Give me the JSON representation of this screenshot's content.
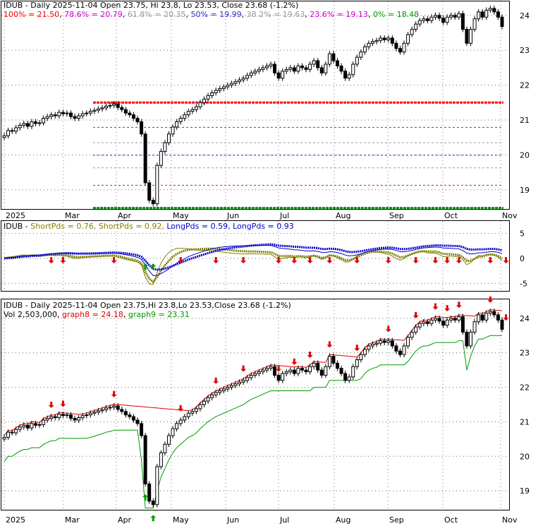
{
  "colors": {
    "up_candle": "#ffffff",
    "down_candle": "#000000",
    "fib_red": "#ff0000",
    "fib_purple": "#cc00cc",
    "fib_gray": "#999999",
    "fib_blue": "#3333cc",
    "fib_green": "#009900",
    "short_pds": "#808000",
    "long_pds": "#0000cc",
    "arrow_down": "#e00000",
    "arrow_up": "#00a000",
    "graph8": "#e00000",
    "graph9": "#009900",
    "grid": "#000000"
  },
  "x_axis": {
    "labels": [
      "2025",
      "Mar",
      "Apr",
      "May",
      "Jun",
      "Jul",
      "Aug",
      "Sep",
      "Oct",
      "Nov"
    ]
  },
  "panel1": {
    "info": {
      "fib_100": "100% = 21.50",
      "fib_786": "78.6% = 20.79",
      "fib_618": "61.8% = 20.35",
      "fib_50": "50% = 19.99",
      "fib_382": "38.2% = 19.63",
      "fib_236": "23.6% = 19.13",
      "fib_0": "0% = 18.48"
    },
    "title": "IDUB - Daily 2025-11-04 Open 23.75, Hi 23.8, Lo 23.53, Close 23.68 (-1.2%)"
  },
  "panel2": {
    "title": "IDUB - ShortPds = 0.76, ShortPds = 0.92, LongPds = 0.59, LongPds = 0.93",
    "t_idub": "IDUB - ",
    "t_sp1": "ShortPds = 0.76, ",
    "t_sp2": "ShortPds = 0.92, ",
    "t_lp1": "LongPds = 0.59, ",
    "t_lp2": "LongPds = 0.93"
  },
  "panel3": {
    "title": "IDUB - Daily 2025-11-04 Open 23.75,Hi 23.8,Lo 23.53,Close 23.68 (-1.2%)",
    "vol": "Vol 2,503,000",
    "graph8": "graph8 = 24.18",
    "graph9": "graph9 = 23.31"
  },
  "chart_data": [
    {
      "type": "candlestick",
      "title": "IDUB - Daily 2025-11-04 Open 23.75, Hi 23.8, Lo 23.53, Close 23.68 (-1.2%)",
      "ylim": [
        18.45,
        24.4
      ],
      "yticks": [
        19,
        20,
        21,
        22,
        23,
        24
      ],
      "fib_levels": [
        {
          "label": "100%",
          "value": 21.5
        },
        {
          "label": "78.6%",
          "value": 20.79
        },
        {
          "label": "61.8%",
          "value": 20.35
        },
        {
          "label": "50%",
          "value": 19.99
        },
        {
          "label": "38.2%",
          "value": 19.63
        },
        {
          "label": "23.6%",
          "value": 19.13
        },
        {
          "label": "0%",
          "value": 18.48
        }
      ],
      "close_series": [
        20.55,
        20.7,
        20.68,
        20.78,
        20.85,
        20.9,
        20.82,
        20.95,
        20.9,
        20.92,
        21.05,
        21.1,
        21.15,
        21.12,
        21.22,
        21.18,
        21.2,
        21.1,
        21.05,
        21.12,
        21.18,
        21.2,
        21.25,
        21.28,
        21.32,
        21.35,
        21.4,
        21.42,
        21.46,
        21.36,
        21.3,
        21.2,
        21.15,
        21.05,
        20.95,
        20.6,
        19.2,
        18.7,
        18.6,
        19.7,
        20.1,
        20.35,
        20.6,
        20.8,
        20.95,
        21.05,
        21.15,
        21.25,
        21.3,
        21.38,
        21.5,
        21.6,
        21.7,
        21.78,
        21.85,
        21.9,
        21.95,
        22.0,
        22.05,
        22.1,
        22.15,
        22.2,
        22.28,
        22.35,
        22.4,
        22.45,
        22.5,
        22.55,
        22.6,
        22.35,
        22.2,
        22.4,
        22.45,
        22.5,
        22.4,
        22.55,
        22.5,
        22.45,
        22.6,
        22.7,
        22.5,
        22.35,
        22.6,
        22.9,
        22.7,
        22.55,
        22.4,
        22.2,
        22.3,
        22.6,
        22.8,
        22.95,
        23.1,
        23.2,
        23.25,
        23.28,
        23.35,
        23.3,
        23.35,
        23.2,
        23.05,
        22.95,
        23.2,
        23.45,
        23.6,
        23.75,
        23.85,
        23.9,
        23.85,
        23.95,
        24.0,
        23.92,
        23.8,
        23.95,
        24.0,
        23.95,
        24.05,
        23.6,
        23.2,
        23.6,
        23.9,
        24.1,
        23.95,
        24.15,
        24.2,
        24.1,
        23.95,
        23.68
      ]
    },
    {
      "type": "line",
      "title": "IDUB - ShortPds = 0.76, ShortPds = 0.92, LongPds = 0.59, LongPds = 0.93",
      "ylim": [
        -6.5,
        7.5
      ],
      "yticks": [
        -5,
        0,
        5
      ],
      "series": [
        {
          "name": "ShortPds",
          "values": [
            0.76
          ]
        },
        {
          "name": "ShortPds",
          "values": [
            0.92
          ]
        },
        {
          "name": "LongPds",
          "values": [
            0.59
          ]
        },
        {
          "name": "LongPds",
          "values": [
            0.93
          ]
        }
      ],
      "signal_markers_down": [
        12,
        15,
        28,
        45,
        54,
        61,
        70,
        74,
        78,
        83,
        90,
        98,
        105,
        110,
        113,
        116,
        124,
        128
      ],
      "signal_markers_up": [
        36,
        38
      ]
    },
    {
      "type": "candlestick",
      "title": "IDUB - Daily 2025-11-04 Open 23.75,Hi 23.8,Lo 23.53,Close 23.68 (-1.2%)",
      "ylim": [
        18.45,
        24.55
      ],
      "yticks": [
        19,
        20,
        21,
        22,
        23,
        24
      ],
      "series": [
        {
          "name": "graph8",
          "last": 24.18
        },
        {
          "name": "graph9",
          "last": 23.31
        }
      ]
    }
  ]
}
